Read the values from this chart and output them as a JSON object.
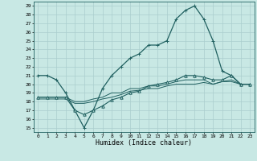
{
  "title": "",
  "xlabel": "Humidex (Indice chaleur)",
  "xlim": [
    -0.5,
    23.5
  ],
  "ylim": [
    14.5,
    29.5
  ],
  "yticks": [
    15,
    16,
    17,
    18,
    19,
    20,
    21,
    22,
    23,
    24,
    25,
    26,
    27,
    28,
    29
  ],
  "xticks": [
    0,
    1,
    2,
    3,
    4,
    5,
    6,
    7,
    8,
    9,
    10,
    11,
    12,
    13,
    14,
    15,
    16,
    17,
    18,
    19,
    20,
    21,
    22,
    23
  ],
  "bg_color": "#c8e8e4",
  "grid_color": "#b0d8d4",
  "line_color": "#206060",
  "line_width": 0.8,
  "marker_size": 2.5,
  "series": [
    {
      "x": [
        0,
        1,
        2,
        3,
        4,
        5,
        6,
        7,
        8,
        9,
        10,
        11,
        12,
        13,
        14,
        15,
        16,
        17,
        18,
        19,
        20,
        21,
        22,
        23
      ],
      "y": [
        21,
        21,
        20.5,
        19,
        17,
        15,
        17,
        19.5,
        21,
        22,
        23,
        23.5,
        24.5,
        24.5,
        25,
        27.5,
        28.5,
        29,
        27.5,
        25,
        21.5,
        21,
        20,
        20
      ],
      "marker": "+",
      "filled": true,
      "lw": 0.9
    },
    {
      "x": [
        0,
        1,
        2,
        3,
        4,
        5,
        6,
        7,
        8,
        9,
        10,
        11,
        12,
        13,
        14,
        15,
        16,
        17,
        18,
        19,
        20,
        21,
        22,
        23
      ],
      "y": [
        18.5,
        18.5,
        18.5,
        18.5,
        17,
        16.5,
        17.0,
        17.5,
        18.2,
        18.5,
        19.0,
        19.2,
        19.8,
        20.0,
        20.2,
        20.5,
        21.0,
        21.0,
        20.8,
        20.5,
        20.5,
        21.0,
        20.0,
        20.0
      ],
      "marker": "^",
      "filled": false,
      "lw": 0.8
    },
    {
      "x": [
        0,
        1,
        2,
        3,
        4,
        5,
        6,
        7,
        8,
        9,
        10,
        11,
        12,
        13,
        14,
        15,
        16,
        17,
        18,
        19,
        20,
        21,
        22,
        23
      ],
      "y": [
        18.5,
        18.5,
        18.5,
        18.5,
        18,
        18,
        18.3,
        18.5,
        19.0,
        19.0,
        19.5,
        19.5,
        19.8,
        19.8,
        20.0,
        20.3,
        20.5,
        20.5,
        20.5,
        20.0,
        20.3,
        20.5,
        20.0,
        20.0
      ],
      "marker": null,
      "filled": false,
      "lw": 0.7
    },
    {
      "x": [
        0,
        1,
        2,
        3,
        4,
        5,
        6,
        7,
        8,
        9,
        10,
        11,
        12,
        13,
        14,
        15,
        16,
        17,
        18,
        19,
        20,
        21,
        22,
        23
      ],
      "y": [
        18.3,
        18.3,
        18.3,
        18.3,
        17.8,
        17.8,
        18.0,
        18.3,
        18.5,
        18.8,
        19.2,
        19.3,
        19.5,
        19.5,
        19.8,
        20.0,
        20.0,
        20.0,
        20.2,
        20.0,
        20.3,
        20.3,
        20.0,
        20.0
      ],
      "marker": null,
      "filled": false,
      "lw": 0.7
    }
  ]
}
